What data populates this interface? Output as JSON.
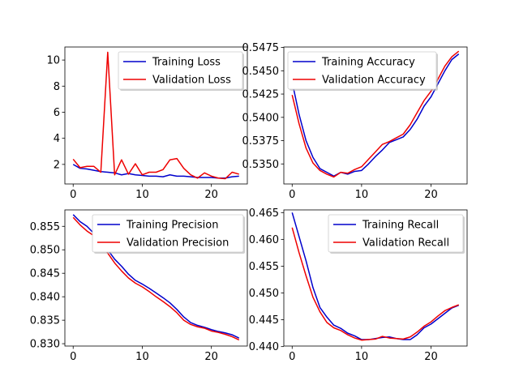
{
  "chart_data": [
    {
      "type": "line",
      "legend": "top-right",
      "grid": false,
      "xlim": [
        -1.2,
        25.2
      ],
      "ylim": [
        0.5,
        11.0
      ],
      "xticks": [
        0,
        10,
        20
      ],
      "yticks": [
        2,
        4,
        6,
        8,
        10
      ],
      "ytick_labels": [
        "2",
        "4",
        "6",
        "8",
        "10"
      ],
      "series": [
        {
          "name": "Training Loss",
          "color": "#0000cc",
          "x": [
            0,
            1,
            2,
            3,
            4,
            5,
            6,
            7,
            8,
            9,
            10,
            11,
            12,
            13,
            14,
            15,
            16,
            17,
            18,
            19,
            20,
            21,
            22,
            23,
            24
          ],
          "y": [
            2.0,
            1.7,
            1.65,
            1.55,
            1.45,
            1.4,
            1.35,
            1.2,
            1.3,
            1.2,
            1.15,
            1.1,
            1.1,
            1.05,
            1.2,
            1.1,
            1.1,
            1.05,
            1.0,
            1.0,
            1.0,
            0.95,
            0.95,
            1.05,
            1.1
          ]
        },
        {
          "name": "Validation Loss",
          "color": "#ee0000",
          "x": [
            0,
            1,
            2,
            3,
            4,
            5,
            6,
            7,
            8,
            9,
            10,
            11,
            12,
            13,
            14,
            15,
            16,
            17,
            18,
            19,
            20,
            21,
            22,
            23,
            24
          ],
          "y": [
            2.4,
            1.75,
            1.85,
            1.85,
            1.4,
            10.6,
            1.2,
            2.35,
            1.25,
            2.05,
            1.2,
            1.4,
            1.4,
            1.6,
            2.35,
            2.45,
            1.7,
            1.2,
            0.95,
            1.35,
            1.1,
            0.95,
            0.9,
            1.4,
            1.25
          ]
        }
      ]
    },
    {
      "type": "line",
      "legend": "top-left",
      "grid": false,
      "xlim": [
        -1.2,
        25.2
      ],
      "ylim": [
        0.53285,
        0.54755
      ],
      "xticks": [
        0,
        10,
        20
      ],
      "yticks": [
        0.535,
        0.5375,
        0.54,
        0.5425,
        0.545,
        0.5475
      ],
      "ytick_labels": [
        "0.5350",
        "0.5375",
        "0.5400",
        "0.5425",
        "0.5450",
        "0.5475"
      ],
      "series": [
        {
          "name": "Training Accuracy",
          "color": "#0000cc",
          "x": [
            0,
            1,
            2,
            3,
            4,
            5,
            6,
            7,
            8,
            9,
            10,
            11,
            12,
            13,
            14,
            15,
            16,
            17,
            18,
            19,
            20,
            21,
            22,
            23,
            24
          ],
          "y": [
            0.5438,
            0.5403,
            0.5375,
            0.5357,
            0.5345,
            0.5341,
            0.5337,
            0.5341,
            0.5339,
            0.5342,
            0.5343,
            0.535,
            0.5358,
            0.5365,
            0.5373,
            0.5376,
            0.5379,
            0.5387,
            0.5398,
            0.5412,
            0.5422,
            0.5436,
            0.545,
            0.5462,
            0.5468
          ]
        },
        {
          "name": "Validation Accuracy",
          "color": "#ee0000",
          "x": [
            0,
            1,
            2,
            3,
            4,
            5,
            6,
            7,
            8,
            9,
            10,
            11,
            12,
            13,
            14,
            15,
            16,
            17,
            18,
            19,
            20,
            21,
            22,
            23,
            24
          ],
          "y": [
            0.5424,
            0.5393,
            0.5367,
            0.5351,
            0.5343,
            0.5339,
            0.5336,
            0.5341,
            0.534,
            0.5344,
            0.5347,
            0.5355,
            0.5363,
            0.5371,
            0.5374,
            0.5378,
            0.5382,
            0.5392,
            0.5405,
            0.5418,
            0.5428,
            0.5441,
            0.5455,
            0.5465,
            0.5471
          ]
        }
      ]
    },
    {
      "type": "line",
      "legend": "top-right",
      "grid": false,
      "xlim": [
        -1.2,
        25.2
      ],
      "ylim": [
        0.8295,
        0.8585
      ],
      "xticks": [
        0,
        10,
        20
      ],
      "yticks": [
        0.83,
        0.835,
        0.84,
        0.845,
        0.85,
        0.855
      ],
      "ytick_labels": [
        "0.830",
        "0.835",
        "0.840",
        "0.845",
        "0.850",
        "0.855"
      ],
      "series": [
        {
          "name": "Training Precision",
          "color": "#0000cc",
          "x": [
            0,
            1,
            2,
            3,
            4,
            5,
            6,
            7,
            8,
            9,
            10,
            11,
            12,
            13,
            14,
            15,
            16,
            17,
            18,
            19,
            20,
            21,
            22,
            23,
            24
          ],
          "y": [
            0.8575,
            0.856,
            0.855,
            0.8535,
            0.852,
            0.85,
            0.848,
            0.8465,
            0.8448,
            0.8435,
            0.8427,
            0.8418,
            0.8408,
            0.8398,
            0.8387,
            0.8373,
            0.8357,
            0.8345,
            0.8339,
            0.8335,
            0.833,
            0.8326,
            0.8323,
            0.8319,
            0.8312
          ]
        },
        {
          "name": "Validation Precision",
          "color": "#ee0000",
          "x": [
            0,
            1,
            2,
            3,
            4,
            5,
            6,
            7,
            8,
            9,
            10,
            11,
            12,
            13,
            14,
            15,
            16,
            17,
            18,
            19,
            20,
            21,
            22,
            23,
            24
          ],
          "y": [
            0.8569,
            0.8553,
            0.854,
            0.853,
            0.8513,
            0.8493,
            0.8472,
            0.8455,
            0.844,
            0.8429,
            0.8421,
            0.8411,
            0.84,
            0.839,
            0.8379,
            0.8366,
            0.835,
            0.8341,
            0.8336,
            0.8333,
            0.8327,
            0.8324,
            0.832,
            0.8315,
            0.8308
          ]
        }
      ]
    },
    {
      "type": "line",
      "legend": "top-right",
      "grid": false,
      "xlim": [
        -1.2,
        25.2
      ],
      "ylim": [
        0.4401,
        0.4655
      ],
      "xticks": [
        0,
        10,
        20
      ],
      "yticks": [
        0.44,
        0.445,
        0.45,
        0.455,
        0.46,
        0.465
      ],
      "ytick_labels": [
        "0.440",
        "0.445",
        "0.450",
        "0.455",
        "0.460",
        "0.465"
      ],
      "series": [
        {
          "name": "Training Recall",
          "color": "#0000cc",
          "x": [
            0,
            1,
            2,
            3,
            4,
            5,
            6,
            7,
            8,
            9,
            10,
            11,
            12,
            13,
            14,
            15,
            16,
            17,
            18,
            19,
            20,
            21,
            22,
            23,
            24
          ],
          "y": [
            0.465,
            0.4605,
            0.456,
            0.451,
            0.4473,
            0.4455,
            0.444,
            0.4434,
            0.4425,
            0.442,
            0.4413,
            0.4413,
            0.4415,
            0.4417,
            0.4418,
            0.4415,
            0.4413,
            0.4413,
            0.4422,
            0.4435,
            0.4442,
            0.4452,
            0.4462,
            0.4472,
            0.4477
          ]
        },
        {
          "name": "Validation Recall",
          "color": "#ee0000",
          "x": [
            0,
            1,
            2,
            3,
            4,
            5,
            6,
            7,
            8,
            9,
            10,
            11,
            12,
            13,
            14,
            15,
            16,
            17,
            18,
            19,
            20,
            21,
            22,
            23,
            24
          ],
          "y": [
            0.4622,
            0.4575,
            0.4532,
            0.4492,
            0.4465,
            0.4445,
            0.4435,
            0.443,
            0.4422,
            0.4416,
            0.4412,
            0.4413,
            0.4414,
            0.4419,
            0.4416,
            0.4415,
            0.4414,
            0.4418,
            0.4427,
            0.4438,
            0.4446,
            0.4457,
            0.4467,
            0.4473,
            0.4478
          ]
        }
      ]
    }
  ]
}
